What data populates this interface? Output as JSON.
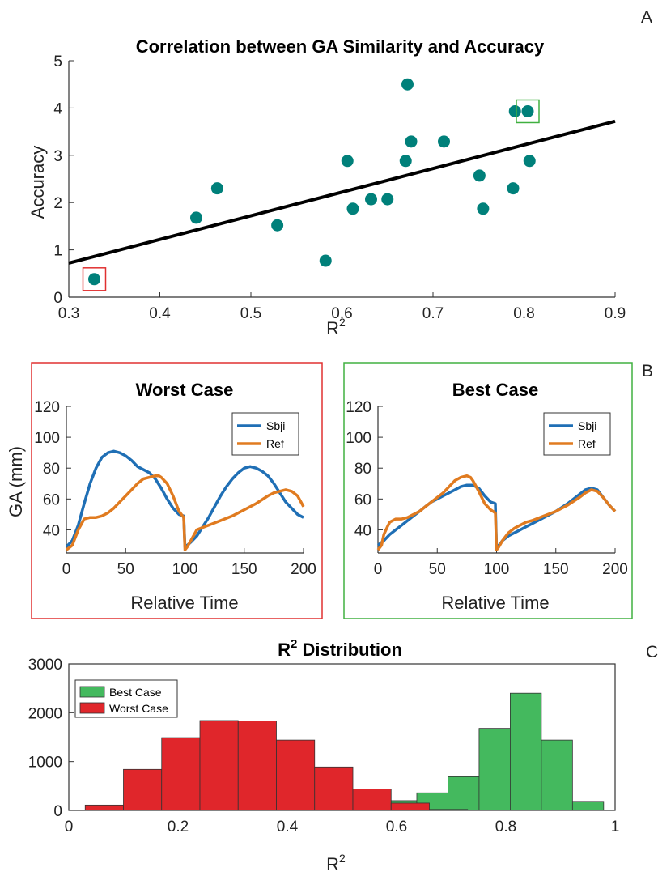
{
  "chart_data": [
    {
      "type": "scatter",
      "panel_label": "A",
      "title": "Correlation between GA Similarity and Accuracy",
      "xlabel": "R",
      "xlabel_sup": "2",
      "ylabel": "Accuracy",
      "xlim": [
        0.3,
        0.9
      ],
      "ylim": [
        0,
        5
      ],
      "xticks": [
        "0.3",
        "0.4",
        "0.5",
        "0.6",
        "0.7",
        "0.8",
        "0.9"
      ],
      "yticks": [
        "0",
        "1",
        "2",
        "3",
        "4",
        "5"
      ],
      "marker_color": "#00807a",
      "points": [
        {
          "x": 0.328,
          "y": 0.38
        },
        {
          "x": 0.44,
          "y": 1.68
        },
        {
          "x": 0.463,
          "y": 2.3
        },
        {
          "x": 0.529,
          "y": 1.52
        },
        {
          "x": 0.582,
          "y": 0.77
        },
        {
          "x": 0.606,
          "y": 2.88
        },
        {
          "x": 0.612,
          "y": 1.87
        },
        {
          "x": 0.632,
          "y": 2.07
        },
        {
          "x": 0.65,
          "y": 2.07
        },
        {
          "x": 0.67,
          "y": 2.88
        },
        {
          "x": 0.672,
          "y": 4.5
        },
        {
          "x": 0.676,
          "y": 3.29
        },
        {
          "x": 0.712,
          "y": 3.29
        },
        {
          "x": 0.751,
          "y": 2.57
        },
        {
          "x": 0.755,
          "y": 1.87
        },
        {
          "x": 0.788,
          "y": 2.3
        },
        {
          "x": 0.79,
          "y": 3.93
        },
        {
          "x": 0.804,
          "y": 3.93
        },
        {
          "x": 0.806,
          "y": 2.88
        }
      ],
      "fit_line": {
        "x": [
          0.3,
          0.9
        ],
        "y": [
          0.72,
          3.72
        ]
      },
      "highlight_worst": {
        "x": 0.328,
        "y": 0.38
      },
      "highlight_best": {
        "x": 0.804,
        "y": 3.93
      }
    },
    {
      "type": "line",
      "panel_label": "B",
      "title": "Worst Case",
      "xlabel": "Relative Time",
      "ylabel": "GA (mm)",
      "xlim": [
        0,
        200
      ],
      "ylim": [
        25,
        120
      ],
      "xticks": [
        "0",
        "50",
        "100",
        "150",
        "200"
      ],
      "yticks": [
        "40",
        "60",
        "80",
        "100",
        "120"
      ],
      "frame_color": "#e03030",
      "series": [
        {
          "name": "Sbji",
          "color": "#1f6fb5",
          "x": [
            0,
            5,
            10,
            15,
            20,
            25,
            30,
            35,
            40,
            45,
            50,
            55,
            60,
            65,
            70,
            75,
            80,
            85,
            90,
            95,
            99,
            100,
            102,
            105,
            110,
            115,
            120,
            125,
            130,
            135,
            140,
            145,
            150,
            155,
            160,
            165,
            170,
            175,
            180,
            185,
            190,
            195,
            200
          ],
          "y": [
            29,
            33,
            43,
            57,
            70,
            80,
            87,
            90,
            91,
            90,
            88,
            85,
            81,
            79,
            77,
            73,
            67,
            60,
            54,
            50,
            49,
            29,
            30,
            32,
            36,
            42,
            48,
            55,
            62,
            68,
            73,
            77,
            80,
            81,
            80,
            78,
            75,
            70,
            64,
            58,
            54,
            50,
            48
          ]
        },
        {
          "name": "Ref",
          "color": "#e07b20",
          "x": [
            0,
            5,
            10,
            15,
            20,
            25,
            30,
            35,
            40,
            45,
            50,
            55,
            60,
            65,
            70,
            75,
            78,
            80,
            85,
            90,
            95,
            99,
            100,
            102,
            105,
            110,
            120,
            130,
            140,
            150,
            160,
            170,
            175,
            180,
            185,
            190,
            195,
            200
          ],
          "y": [
            27,
            30,
            40,
            47,
            48,
            48,
            49,
            51,
            54,
            58,
            62,
            66,
            70,
            73,
            74,
            75,
            75,
            74,
            70,
            62,
            52,
            48,
            27,
            29,
            33,
            40,
            43,
            46,
            49,
            53,
            57,
            62,
            64,
            65,
            66,
            65,
            62,
            55
          ]
        }
      ]
    },
    {
      "type": "line",
      "panel_label": "",
      "title": "Best Case",
      "xlabel": "Relative Time",
      "ylabel": "",
      "xlim": [
        0,
        200
      ],
      "ylim": [
        25,
        120
      ],
      "xticks": [
        "0",
        "50",
        "100",
        "150",
        "200"
      ],
      "yticks": [
        "40",
        "60",
        "80",
        "100",
        "120"
      ],
      "frame_color": "#40b040",
      "series": [
        {
          "name": "Sbji",
          "color": "#1f6fb5",
          "x": [
            0,
            5,
            10,
            15,
            20,
            25,
            30,
            35,
            40,
            45,
            50,
            55,
            60,
            65,
            70,
            75,
            80,
            85,
            90,
            95,
            99,
            100,
            102,
            105,
            110,
            115,
            120,
            125,
            130,
            140,
            150,
            160,
            170,
            175,
            180,
            185,
            190,
            195,
            200
          ],
          "y": [
            30,
            33,
            37,
            40,
            43,
            46,
            49,
            52,
            55,
            58,
            60,
            62,
            64,
            66,
            68,
            69,
            69,
            67,
            62,
            58,
            57,
            28,
            30,
            33,
            36,
            38,
            40,
            42,
            44,
            48,
            52,
            57,
            63,
            66,
            67,
            66,
            61,
            56,
            52
          ]
        },
        {
          "name": "Ref",
          "color": "#e07b20",
          "x": [
            0,
            3,
            5,
            8,
            10,
            15,
            20,
            25,
            30,
            35,
            40,
            45,
            50,
            55,
            60,
            65,
            70,
            75,
            78,
            80,
            85,
            90,
            95,
            99,
            100,
            102,
            105,
            110,
            115,
            120,
            125,
            130,
            140,
            150,
            160,
            170,
            175,
            180,
            185,
            190,
            195,
            200
          ],
          "y": [
            27,
            30,
            37,
            42,
            45,
            47,
            47,
            48,
            50,
            52,
            55,
            58,
            61,
            64,
            68,
            72,
            74,
            75,
            74,
            72,
            65,
            57,
            53,
            51,
            27,
            29,
            33,
            38,
            41,
            43,
            45,
            46,
            49,
            52,
            56,
            61,
            64,
            66,
            65,
            61,
            56,
            52
          ]
        }
      ]
    },
    {
      "type": "histogram",
      "panel_label": "C",
      "title": "R",
      "title_sup": "2",
      "title_suffix": " Distribution",
      "xlabel": "R",
      "xlabel_sup": "2",
      "xlim": [
        0,
        1
      ],
      "ylim": [
        0,
        3000
      ],
      "xticks": [
        "0",
        "0.2",
        "0.4",
        "0.6",
        "0.8",
        "1"
      ],
      "yticks": [
        "0",
        "1000",
        "2000",
        "3000"
      ],
      "series": [
        {
          "name": "Best Case",
          "color": "#44b95e",
          "bins": [
            [
              0.58,
              0.637,
              200
            ],
            [
              0.637,
              0.694,
              360
            ],
            [
              0.694,
              0.751,
              690
            ],
            [
              0.751,
              0.808,
              1680
            ],
            [
              0.808,
              0.865,
              2400
            ],
            [
              0.865,
              0.922,
              1440
            ],
            [
              0.922,
              0.979,
              185
            ]
          ]
        },
        {
          "name": "Worst Case",
          "color": "#e0262b",
          "bins": [
            [
              0.03,
              0.1,
              110
            ],
            [
              0.1,
              0.17,
              840
            ],
            [
              0.17,
              0.24,
              1490
            ],
            [
              0.24,
              0.31,
              1840
            ],
            [
              0.31,
              0.38,
              1830
            ],
            [
              0.38,
              0.45,
              1440
            ],
            [
              0.45,
              0.52,
              890
            ],
            [
              0.52,
              0.59,
              440
            ],
            [
              0.59,
              0.66,
              150
            ],
            [
              0.66,
              0.73,
              20
            ]
          ]
        }
      ]
    }
  ]
}
